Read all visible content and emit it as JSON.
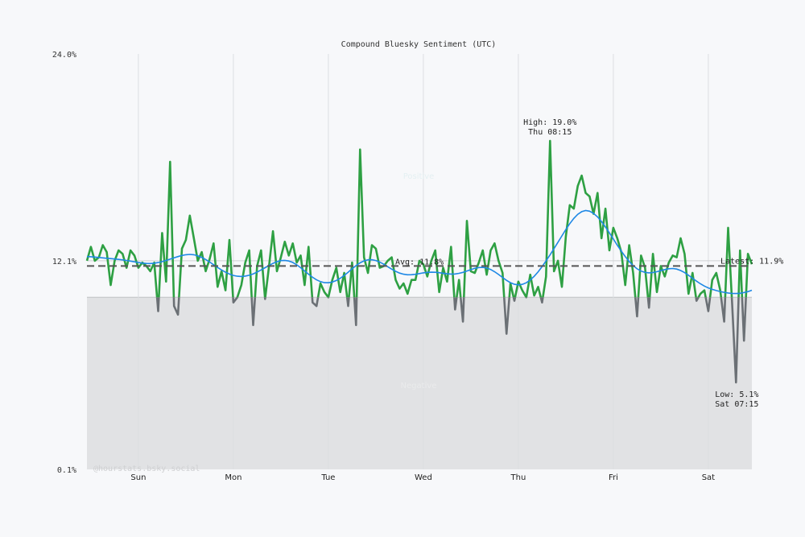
{
  "chart_data": {
    "type": "line",
    "title": "Compound Bluesky Sentiment (UTC)",
    "x_start": "Sat 11:00",
    "interval": "1h",
    "x_tick_labels": [
      "Sun",
      "Mon",
      "Tue",
      "Wed",
      "Thu",
      "Fri",
      "Sat"
    ],
    "y_tick_labels": [
      "24.0%",
      "12.1%",
      "0.1%"
    ],
    "y_ticks": [
      24.0,
      12.1,
      0.1
    ],
    "ylim": [
      0.1,
      24.0
    ],
    "threshold": 10.0,
    "grid": true,
    "series": [
      {
        "values": [
          12.1,
          12.9,
          12.1,
          12.3,
          13.0,
          12.6,
          10.7,
          12.1,
          12.7,
          12.5,
          11.7,
          12.7,
          12.4,
          11.7,
          12.0,
          11.8,
          11.5,
          12.0,
          9.2,
          13.7,
          10.9,
          17.8,
          9.5,
          9.0,
          12.8,
          13.3,
          14.7,
          13.4,
          12.1,
          12.6,
          11.5,
          12.2,
          13.1,
          10.6,
          11.5,
          10.4,
          13.3,
          9.7,
          10.0,
          10.7,
          12.0,
          12.7,
          8.4,
          11.8,
          12.7,
          9.9,
          11.8,
          13.8,
          11.5,
          12.3,
          13.2,
          12.4,
          13.1,
          12.0,
          12.4,
          10.7,
          12.9,
          9.7,
          9.5,
          10.8,
          10.3,
          10.0,
          11.0,
          11.7,
          10.3,
          11.4,
          9.5,
          12.0,
          8.4,
          18.5,
          12.3,
          11.4,
          13.0,
          12.8,
          11.7,
          11.8,
          12.1,
          12.3,
          11.0,
          10.5,
          10.8,
          10.2,
          11.0,
          11.0,
          12.1,
          11.9,
          11.2,
          12.1,
          12.7,
          10.3,
          11.7,
          10.9,
          12.9,
          9.3,
          11.0,
          8.6,
          14.4,
          11.5,
          11.4,
          12.0,
          12.7,
          11.3,
          12.7,
          13.1,
          12.1,
          11.4,
          7.9,
          10.8,
          9.8,
          10.9,
          10.4,
          10.0,
          11.3,
          10.1,
          10.6,
          9.7,
          11.2,
          19.0,
          11.5,
          12.1,
          10.6,
          13.5,
          15.3,
          15.1,
          16.4,
          17.0,
          16.0,
          15.8,
          14.8,
          16.0,
          13.4,
          15.1,
          12.7,
          14.0,
          13.4,
          12.6,
          10.7,
          13.0,
          11.4,
          8.9,
          12.4,
          11.7,
          9.4,
          12.5,
          10.3,
          11.8,
          11.2,
          12.0,
          12.4,
          12.3,
          13.4,
          12.5,
          10.2,
          11.4,
          9.8,
          10.2,
          10.4,
          9.2,
          11.0,
          11.4,
          10.4,
          8.6,
          14.0,
          9.7,
          5.1,
          12.7,
          7.5,
          12.5,
          11.9
        ]
      }
    ],
    "average": 11.8,
    "annotations": {
      "high_label": "High: 19.0%",
      "high_time": "Thu 08:15",
      "high_value": 19.0,
      "low_label": "Low: 5.1%",
      "low_time": "Sat 07:15",
      "low_value": 5.1,
      "avg_label": "Avg: 11.8%",
      "latest_label": "Latest: 11.9%"
    },
    "region_labels": {
      "positive": "Positive",
      "negative": "Negative"
    },
    "watermark": "@hourstats.bsky.social",
    "colors": {
      "above": "#2ea043",
      "below": "#6b7075",
      "smooth": "#1e88e5",
      "average": "#555555",
      "negative_region": "#e1e2e4",
      "background": "#f7f8fa"
    }
  }
}
